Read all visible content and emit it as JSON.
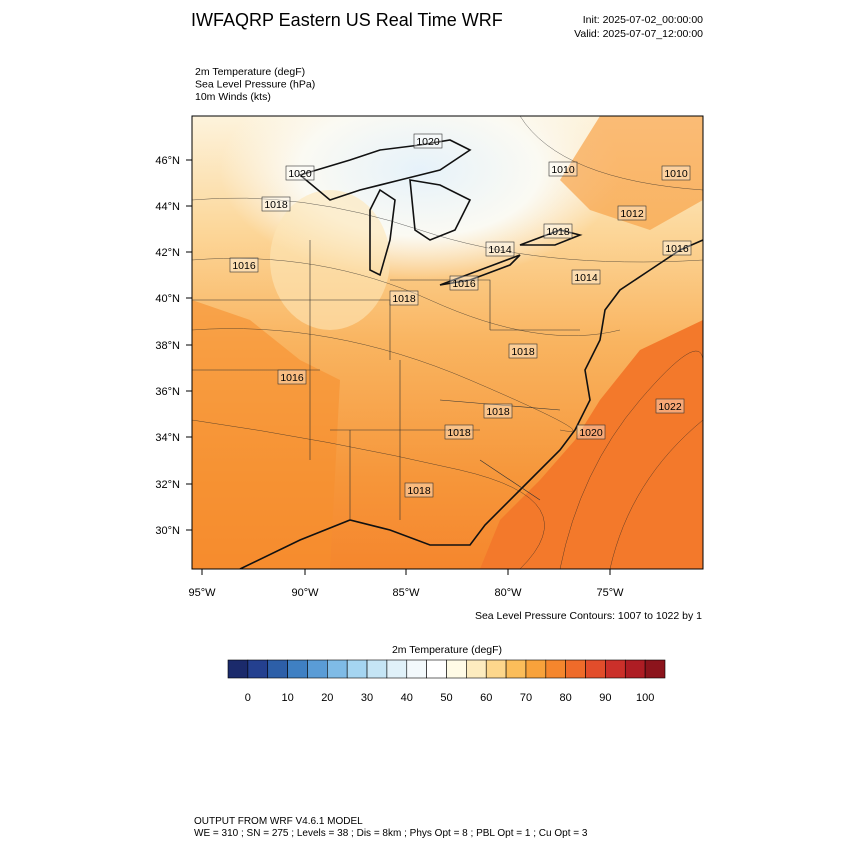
{
  "header": {
    "title": "IWFAQRP Eastern US Real Time WRF",
    "init": "Init: 2025-07-02_00:00:00",
    "valid": "Valid: 2025-07-07_12:00:00"
  },
  "fields": [
    "2m Temperature   (degF)",
    "Sea Level Pressure   (hPa)",
    "10m Winds   (kts)"
  ],
  "map": {
    "lat_labels": [
      "46°N",
      "44°N",
      "42°N",
      "40°N",
      "38°N",
      "36°N",
      "34°N",
      "32°N",
      "30°N"
    ],
    "lon_labels": [
      "95°W",
      "90°W",
      "85°W",
      "80°W",
      "75°W"
    ],
    "contour_labels": [
      "1020",
      "1020",
      "1018",
      "1016",
      "1018",
      "1016",
      "1014",
      "1018",
      "1010",
      "1010",
      "1012",
      "1016",
      "1014",
      "1018",
      "1016",
      "1018",
      "1022",
      "1020",
      "1018",
      "1018"
    ]
  },
  "contour_note": "Sea Level Pressure Contours: 1007 to 1022 by 1",
  "colorbar": {
    "title": "2m Temperature  (degF)",
    "colors": [
      "#1b2a6b",
      "#24408f",
      "#2d5fa8",
      "#3f80c3",
      "#5a9cd6",
      "#7fbbe6",
      "#a5d5f1",
      "#c5e5f5",
      "#e0f1f9",
      "#f3f9fc",
      "#ffffff",
      "#fffbe6",
      "#fdecbf",
      "#fdd78c",
      "#fbbd5a",
      "#f8a23b",
      "#f5862d",
      "#ef6b2a",
      "#e24d2b",
      "#cb302a",
      "#ae1d24",
      "#8c141c"
    ],
    "ticks": [
      0,
      10,
      20,
      30,
      40,
      50,
      60,
      70,
      80,
      90,
      100
    ]
  },
  "footer": [
    "OUTPUT FROM WRF V4.6.1 MODEL",
    "WE = 310 ; SN = 275 ; Levels = 38 ; Dis = 8km ; Phys Opt = 8 ; PBL Opt = 1 ; Cu Opt = 3"
  ]
}
